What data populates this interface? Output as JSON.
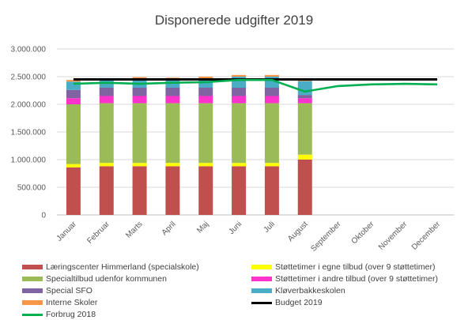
{
  "chart_data": {
    "type": "bar",
    "title": "Disponerede udgifter 2019",
    "categories": [
      "Januar",
      "Februar",
      "Marts",
      "April",
      "Maj",
      "Juni",
      "Juli",
      "August",
      "September",
      "Oktober",
      "November",
      "December"
    ],
    "y_ticks": [
      "0",
      "500.000",
      "1.000.000",
      "1.500.000",
      "2.000.000",
      "2.500.000",
      "3.000.000"
    ],
    "ylim": [
      0,
      3000000
    ],
    "grid": true,
    "legend_position": "bottom",
    "series": [
      {
        "name": "Læringscenter Himmerland (specialskole)",
        "color": "#c0504d",
        "kind": "bar",
        "values": [
          860000,
          880000,
          880000,
          880000,
          880000,
          880000,
          880000,
          1000000,
          null,
          null,
          null,
          null
        ]
      },
      {
        "name": "Støttetimer i egne tilbud (over 9 støttetimer)",
        "color": "#ffff00",
        "kind": "bar",
        "values": [
          60000,
          60000,
          60000,
          60000,
          60000,
          60000,
          60000,
          90000,
          null,
          null,
          null,
          null
        ]
      },
      {
        "name": "Specialtilbud udenfor kommunen",
        "color": "#9bbb59",
        "kind": "bar",
        "values": [
          1080000,
          1080000,
          1080000,
          1080000,
          1080000,
          1080000,
          1080000,
          930000,
          null,
          null,
          null,
          null
        ]
      },
      {
        "name": "Støttetimer i andre tilbud (over 9 støttetimer)",
        "color": "#ff33cc",
        "kind": "bar",
        "values": [
          110000,
          130000,
          130000,
          130000,
          130000,
          130000,
          130000,
          90000,
          null,
          null,
          null,
          null
        ]
      },
      {
        "name": "Special SFO",
        "color": "#8064a2",
        "kind": "bar",
        "values": [
          150000,
          150000,
          150000,
          150000,
          150000,
          150000,
          150000,
          60000,
          null,
          null,
          null,
          null
        ]
      },
      {
        "name": "Kløverbakkeskolen",
        "color": "#4bacc6",
        "kind": "bar",
        "values": [
          150000,
          150000,
          150000,
          150000,
          150000,
          200000,
          200000,
          250000,
          null,
          null,
          null,
          null
        ]
      },
      {
        "name": "Interne Skoler",
        "color": "#f79646",
        "kind": "bar",
        "values": [
          30000,
          20000,
          40000,
          30000,
          50000,
          30000,
          30000,
          30000,
          null,
          null,
          null,
          null
        ]
      },
      {
        "name": "Budget 2019",
        "color": "#000000",
        "kind": "line",
        "values": [
          2450000,
          2450000,
          2450000,
          2450000,
          2450000,
          2450000,
          2450000,
          2450000,
          2450000,
          2450000,
          2450000,
          2450000
        ]
      },
      {
        "name": "Forbrug 2018",
        "color": "#00b050",
        "kind": "line",
        "values": [
          2370000,
          2390000,
          2370000,
          2390000,
          2400000,
          2440000,
          2440000,
          2230000,
          2330000,
          2360000,
          2370000,
          2360000
        ]
      }
    ]
  }
}
